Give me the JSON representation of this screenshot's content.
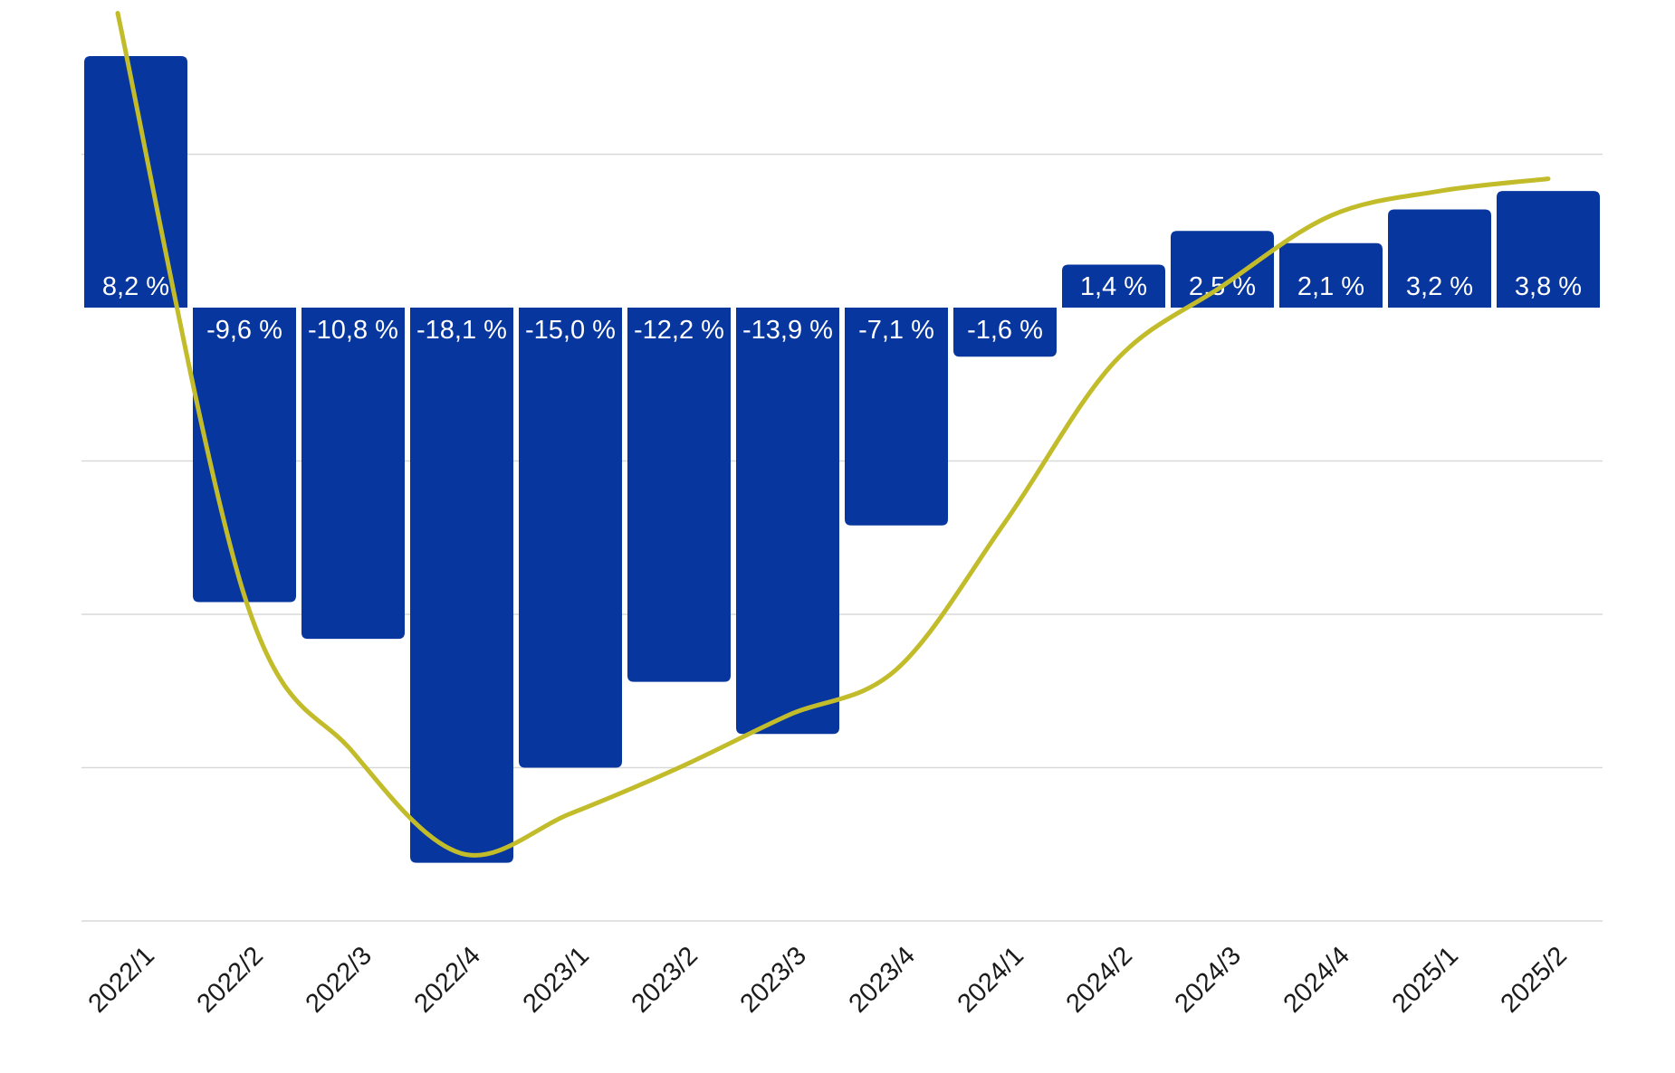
{
  "chart_data": {
    "type": "bar",
    "title": "",
    "xlabel": "",
    "ylabel": "",
    "categories": [
      "2022/1",
      "2022/2",
      "2022/3",
      "2022/4",
      "2023/1",
      "2023/2",
      "2023/3",
      "2023/4",
      "2024/1",
      "2024/2",
      "2024/3",
      "2024/4",
      "2025/1",
      "2025/2"
    ],
    "series": [
      {
        "values": [
          8.2,
          -9.6,
          -10.8,
          -18.1,
          -15.0,
          -12.2,
          -13.9,
          -7.1,
          -1.6,
          1.4,
          2.5,
          2.1,
          3.2,
          3.8
        ],
        "labels": [
          "8,2 %",
          "-9,6 %",
          "-10,8 %",
          "-18,1 %",
          "-15,0 %",
          "-12,2 %",
          "-13,9 %",
          "-7,1 %",
          "-1,6 %",
          "1,4 %",
          "2,5 %",
          "2,1 %",
          "3,2 %",
          "3,8 %"
        ],
        "color": "#06369e"
      }
    ],
    "trend_line": {
      "color": "#c2bc2b",
      "values": [
        8.2,
        -9.4,
        -14.5,
        -17.8,
        -16.5,
        -15.0,
        -13.3,
        -11.8,
        -7.0,
        -1.8,
        0.7,
        3.0,
        3.8,
        4.2
      ]
    },
    "ylim": [
      -20,
      10
    ],
    "gridlines": [
      5,
      -5,
      -10,
      -15,
      -20
    ],
    "grid": true,
    "legend": "none",
    "colors": {
      "bar": "#06369e",
      "trend": "#c2bc2b",
      "label_inside": "#ffffff",
      "label_outside": "#1a1a1a",
      "grid": "#d9d9d9"
    }
  }
}
